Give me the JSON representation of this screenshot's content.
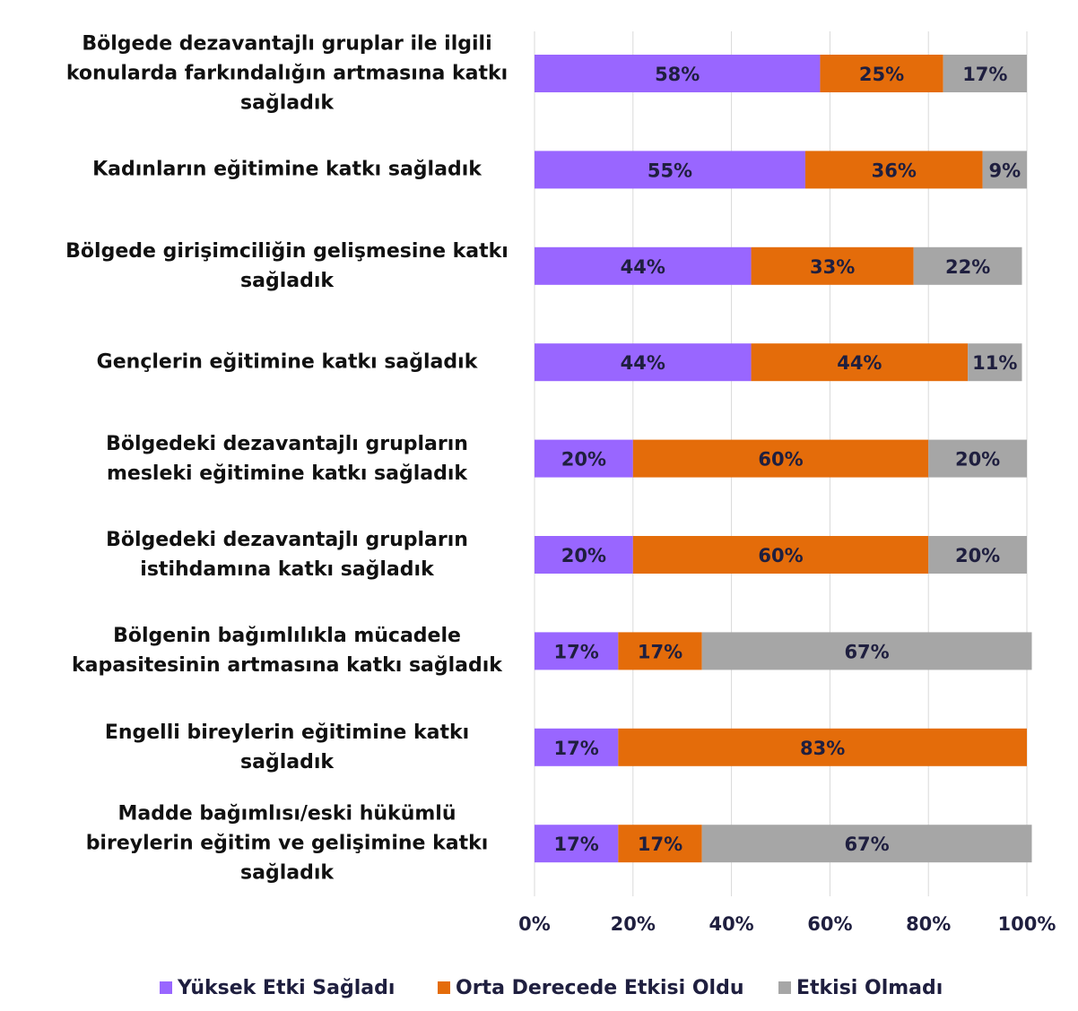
{
  "chart_data": {
    "type": "stacked_barh",
    "categories": [
      "Bölgede dezavantajlı gruplar ile ilgili konularda farkındalığın artmasına katkı sağladık",
      "Kadınların eğitimine katkı sağladık",
      "Bölgede girişimciliğin gelişmesine katkı sağladık",
      "Gençlerin eğitimine katkı sağladık",
      "Bölgedeki dezavantajlı grupların mesleki eğitimine katkı sağladık",
      "Bölgedeki dezavantajlı grupların istihdamına katkı sağladık",
      "Bölgenin bağımlılıkla mücadele kapasitesinin artmasına katkı sağladık",
      "Engelli bireylerin eğitimine katkı sağladık",
      "Madde bağımlısı/eski hükümlü bireylerin eğitim ve gelişimine katkı sağladık"
    ],
    "series": [
      {
        "name": "Yüksek Etki Sağladı",
        "color": "#9966ff",
        "values": [
          58,
          55,
          44,
          44,
          20,
          20,
          17,
          17,
          17
        ],
        "value_labels": [
          "58%",
          "55%",
          "44%",
          "44%",
          "20%",
          "20%",
          "17%",
          "17%",
          "17%"
        ]
      },
      {
        "name": "Orta Derecede Etkisi Oldu",
        "color": "#e46c0a",
        "values": [
          25,
          36,
          33,
          44,
          60,
          60,
          17,
          83,
          17
        ],
        "value_labels": [
          "25%",
          "36%",
          "33%",
          "44%",
          "60%",
          "60%",
          "17%",
          "83%",
          "17%"
        ]
      },
      {
        "name": "Etkisi Olmadı",
        "color": "#a6a6a6",
        "values": [
          17,
          9,
          22,
          11,
          20,
          20,
          67,
          null,
          67
        ],
        "value_labels": [
          "17%",
          "9%",
          "22%",
          "11%",
          "20%",
          "20%",
          "67%",
          null,
          "67%"
        ]
      }
    ],
    "xlim": [
      0,
      100
    ],
    "xticks": [
      {
        "value": 0,
        "label": "0%"
      },
      {
        "value": 20,
        "label": "20%"
      },
      {
        "value": 40,
        "label": "40%"
      },
      {
        "value": 60,
        "label": "60%"
      },
      {
        "value": 80,
        "label": "80%"
      },
      {
        "value": 100,
        "label": "100%"
      }
    ],
    "grid": true,
    "legend": "bottom"
  }
}
